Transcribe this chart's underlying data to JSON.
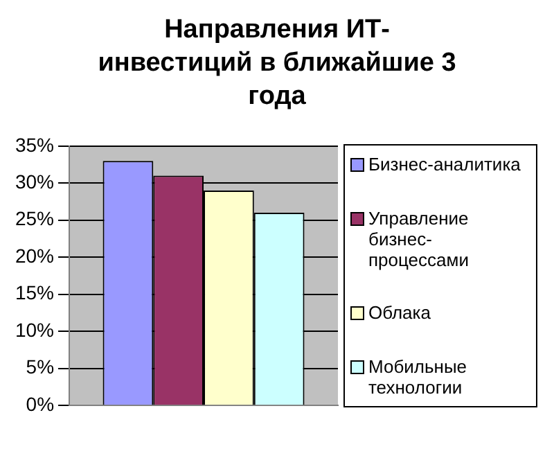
{
  "chart_data": {
    "type": "bar",
    "title": "Направления ИТ-инвестиций в ближайшие 3 года",
    "categories": [
      null
    ],
    "series": [
      {
        "name": "Бизнес-аналитика",
        "color": "#9999ff",
        "values": [
          33
        ]
      },
      {
        "name": "Управление бизнес-процессами",
        "color": "#993366",
        "values": [
          31
        ]
      },
      {
        "name": "Облака",
        "color": "#ffffcc",
        "values": [
          29
        ]
      },
      {
        "name": "Мобильные технологии",
        "color": "#ccffff",
        "values": [
          26
        ]
      }
    ],
    "ylim": [
      0,
      35
    ],
    "yticks": [
      {
        "value": 0,
        "label": "0%"
      },
      {
        "value": 5,
        "label": "5%"
      },
      {
        "value": 10,
        "label": "10%"
      },
      {
        "value": 15,
        "label": "15%"
      },
      {
        "value": 20,
        "label": "20%"
      },
      {
        "value": 25,
        "label": "25%"
      },
      {
        "value": 30,
        "label": "30%"
      },
      {
        "value": 35,
        "label": "35%"
      }
    ],
    "grid": "y",
    "legend": "right"
  }
}
